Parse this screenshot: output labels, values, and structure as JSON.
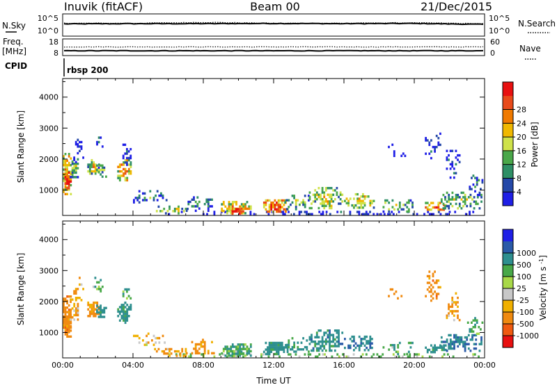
{
  "header": {
    "station": "Inuvik (fitACF)",
    "beam": "Beam 00",
    "date": "21/Dec/2015"
  },
  "colors": {
    "line": "#000000",
    "background": "#ffffff",
    "power_scale": [
      "#1f1fe6",
      "#2448a8",
      "#2e8f66",
      "#4aa84a",
      "#cfe24a",
      "#f0b800",
      "#f07a00",
      "#e84a1a",
      "#e81010"
    ],
    "velocity_scale": [
      "#e81010",
      "#f05a10",
      "#f08a10",
      "#f0b000",
      "#c8c8c8",
      "#a8d848",
      "#48a848",
      "#2e8f8f",
      "#2a5aa8",
      "#1f1fe6"
    ]
  },
  "chart_data": [
    {
      "type": "line",
      "panel": "nsky-nsearch",
      "left_label": "N.Sky",
      "right_label": "N.Search",
      "left_ticks": [
        "10^5",
        "10^0"
      ],
      "right_ticks": [
        "10^5",
        "10^0"
      ],
      "x": [
        "00:00",
        "04:00",
        "08:00",
        "12:00",
        "16:00",
        "20:00",
        "00:00"
      ],
      "series": [
        {
          "values": [
            0.55,
            0.56,
            0.56,
            0.57,
            0.56,
            0.57,
            0.53
          ],
          "style": "solid"
        },
        {
          "values": [
            0.58,
            0.58,
            0.62,
            0.58,
            0.58,
            0.6,
            0.56
          ],
          "style": "dotted"
        }
      ],
      "ylim": [
        0,
        1
      ]
    },
    {
      "type": "line",
      "panel": "freq-nave",
      "left_label_lines": [
        "Freq.",
        "[MHz]"
      ],
      "right_label": "Nave",
      "left_ticks": [
        "18",
        "8"
      ],
      "right_ticks": [
        "60",
        "0"
      ],
      "x": [
        "00:00",
        "04:00",
        "08:00",
        "12:00",
        "16:00",
        "20:00",
        "00:00"
      ],
      "series": [
        {
          "values": [
            10.9,
            10.9,
            10.9,
            10.9,
            10.9,
            10.9,
            10.9
          ],
          "style": "solid"
        },
        {
          "values": [
            13.2,
            13.2,
            13.2,
            13.2,
            13.2,
            13.2,
            13.2
          ],
          "style": "dotted"
        }
      ],
      "ylim": [
        8,
        18
      ]
    },
    {
      "type": "line",
      "panel": "cpid",
      "left_label": "CPID",
      "annotation": "rbsp 200"
    },
    {
      "type": "heatmap",
      "panel": "power",
      "ylabel": "Slant Range [km]",
      "yticks": [
        "1000",
        "2000",
        "3000",
        "4000"
      ],
      "ylim": [
        180,
        4600
      ],
      "xlim_hours": [
        0,
        24
      ],
      "colorbar_label": "Power [dB]",
      "colorbar_ticks": [
        "4",
        "8",
        "12",
        "16",
        "20",
        "24",
        "28"
      ],
      "clusters": [
        {
          "t": [
            0.0,
            0.5
          ],
          "r": [
            800,
            2200
          ],
          "v": 24,
          "d": 0.95
        },
        {
          "t": [
            0.1,
            0.5
          ],
          "r": [
            1000,
            1600
          ],
          "v": 30,
          "d": 0.95
        },
        {
          "t": [
            0.4,
            0.9
          ],
          "r": [
            1400,
            2100
          ],
          "v": 16,
          "d": 0.65
        },
        {
          "t": [
            0.6,
            1.2
          ],
          "r": [
            1900,
            2800
          ],
          "v": 6,
          "d": 0.3
        },
        {
          "t": [
            1.4,
            2.1
          ],
          "r": [
            1500,
            2000
          ],
          "v": 20,
          "d": 0.8
        },
        {
          "t": [
            1.9,
            2.5
          ],
          "r": [
            1400,
            1900
          ],
          "v": 14,
          "d": 0.6
        },
        {
          "t": [
            1.7,
            2.3
          ],
          "r": [
            2300,
            2800
          ],
          "v": 6,
          "d": 0.3
        },
        {
          "t": [
            3.1,
            3.9
          ],
          "r": [
            1300,
            2000
          ],
          "v": 24,
          "d": 0.7
        },
        {
          "t": [
            3.4,
            3.95
          ],
          "r": [
            1800,
            2500
          ],
          "v": 5,
          "d": 0.45
        },
        {
          "t": [
            4.0,
            6.0
          ],
          "r": [
            550,
            1000
          ],
          "v": 9,
          "d": 0.25
        },
        {
          "t": [
            6.0,
            23.9
          ],
          "r": [
            180,
            330
          ],
          "v": 5,
          "d": 0.28
        },
        {
          "t": [
            5.2,
            7.2
          ],
          "r": [
            200,
            500
          ],
          "v": 18,
          "d": 0.55
        },
        {
          "t": [
            7.0,
            8.6
          ],
          "r": [
            300,
            800
          ],
          "v": 12,
          "d": 0.35
        },
        {
          "t": [
            9.0,
            10.8
          ],
          "r": [
            220,
            650
          ],
          "v": 22,
          "d": 0.8
        },
        {
          "t": [
            9.5,
            10.3
          ],
          "r": [
            240,
            420
          ],
          "v": 30,
          "d": 0.9
        },
        {
          "t": [
            11.4,
            12.8
          ],
          "r": [
            250,
            700
          ],
          "v": 28,
          "d": 0.95
        },
        {
          "t": [
            12.5,
            14.0
          ],
          "r": [
            350,
            850
          ],
          "v": 14,
          "d": 0.45
        },
        {
          "t": [
            14.0,
            16.0
          ],
          "r": [
            400,
            1100
          ],
          "v": 18,
          "d": 0.6
        },
        {
          "t": [
            16.0,
            17.8
          ],
          "r": [
            400,
            900
          ],
          "v": 20,
          "d": 0.55
        },
        {
          "t": [
            18.2,
            20.0
          ],
          "r": [
            300,
            700
          ],
          "v": 16,
          "d": 0.4
        },
        {
          "t": [
            20.6,
            21.8
          ],
          "r": [
            300,
            620
          ],
          "v": 28,
          "d": 0.75
        },
        {
          "t": [
            21.5,
            23.9
          ],
          "r": [
            350,
            950
          ],
          "v": 16,
          "d": 0.5
        },
        {
          "t": [
            23.0,
            23.9
          ],
          "r": [
            900,
            1500
          ],
          "v": 10,
          "d": 0.35
        },
        {
          "t": [
            18.5,
            19.5
          ],
          "r": [
            2100,
            2500
          ],
          "v": 5,
          "d": 0.22
        },
        {
          "t": [
            20.6,
            21.5
          ],
          "r": [
            2000,
            3000
          ],
          "v": 6,
          "d": 0.3
        },
        {
          "t": [
            21.8,
            22.6
          ],
          "r": [
            1400,
            2300
          ],
          "v": 6,
          "d": 0.35
        }
      ]
    },
    {
      "type": "heatmap",
      "panel": "velocity",
      "ylabel": "Slant Range [km]",
      "yticks": [
        "1000",
        "2000",
        "3000",
        "4000"
      ],
      "ylim": [
        180,
        4600
      ],
      "xlabel": "Time UT",
      "xticks": [
        "00:00",
        "04:00",
        "08:00",
        "12:00",
        "16:00",
        "20:00",
        "00:00"
      ],
      "xlim_hours": [
        0,
        24
      ],
      "colorbar_label": "Velocity [m s^-1]",
      "colorbar_ticks": [
        "-1000",
        "-500",
        "-100",
        "-25",
        "25",
        "100",
        "500",
        "1000"
      ],
      "clusters": [
        {
          "t": [
            0.0,
            0.5
          ],
          "r": [
            800,
            2200
          ],
          "v": -300,
          "d": 0.95
        },
        {
          "t": [
            0.1,
            0.5
          ],
          "r": [
            1000,
            1600
          ],
          "v": -150,
          "d": 0.9
        },
        {
          "t": [
            0.4,
            0.9
          ],
          "r": [
            1400,
            2100
          ],
          "v": -100,
          "d": 0.65
        },
        {
          "t": [
            0.6,
            1.2
          ],
          "r": [
            1900,
            2800
          ],
          "v": -80,
          "d": 0.3
        },
        {
          "t": [
            1.4,
            2.1
          ],
          "r": [
            1500,
            2000
          ],
          "v": -200,
          "d": 0.8
        },
        {
          "t": [
            1.9,
            2.5
          ],
          "r": [
            1400,
            1900
          ],
          "v": 300,
          "d": 0.6
        },
        {
          "t": [
            1.7,
            2.3
          ],
          "r": [
            2300,
            2800
          ],
          "v": 60,
          "d": 0.3
        },
        {
          "t": [
            3.1,
            3.9
          ],
          "r": [
            1300,
            2000
          ],
          "v": 200,
          "d": 0.7
        },
        {
          "t": [
            3.4,
            3.95
          ],
          "r": [
            1800,
            2500
          ],
          "v": 80,
          "d": 0.45
        },
        {
          "t": [
            4.0,
            6.0
          ],
          "r": [
            550,
            1000
          ],
          "v": -60,
          "d": 0.25
        },
        {
          "t": [
            6.0,
            23.9
          ],
          "r": [
            180,
            330
          ],
          "v": 30,
          "d": 0.28
        },
        {
          "t": [
            5.2,
            7.2
          ],
          "r": [
            200,
            500
          ],
          "v": -120,
          "d": 0.55
        },
        {
          "t": [
            7.0,
            8.6
          ],
          "r": [
            300,
            800
          ],
          "v": -200,
          "d": 0.35
        },
        {
          "t": [
            9.0,
            10.8
          ],
          "r": [
            220,
            650
          ],
          "v": 100,
          "d": 0.8
        },
        {
          "t": [
            9.5,
            10.3
          ],
          "r": [
            240,
            420
          ],
          "v": 60,
          "d": 0.9
        },
        {
          "t": [
            11.4,
            12.8
          ],
          "r": [
            250,
            700
          ],
          "v": 250,
          "d": 0.95
        },
        {
          "t": [
            12.5,
            14.0
          ],
          "r": [
            350,
            850
          ],
          "v": 150,
          "d": 0.45
        },
        {
          "t": [
            14.0,
            16.0
          ],
          "r": [
            400,
            1100
          ],
          "v": 300,
          "d": 0.6
        },
        {
          "t": [
            16.0,
            17.8
          ],
          "r": [
            400,
            900
          ],
          "v": 400,
          "d": 0.55
        },
        {
          "t": [
            18.2,
            20.0
          ],
          "r": [
            300,
            700
          ],
          "v": 80,
          "d": 0.4
        },
        {
          "t": [
            20.6,
            21.8
          ],
          "r": [
            300,
            620
          ],
          "v": 200,
          "d": 0.75
        },
        {
          "t": [
            21.5,
            23.9
          ],
          "r": [
            350,
            950
          ],
          "v": 500,
          "d": 0.5
        },
        {
          "t": [
            23.0,
            23.9
          ],
          "r": [
            900,
            1500
          ],
          "v": 100,
          "d": 0.35
        },
        {
          "t": [
            18.5,
            19.5
          ],
          "r": [
            2100,
            2500
          ],
          "v": -200,
          "d": 0.22
        },
        {
          "t": [
            20.6,
            21.5
          ],
          "r": [
            2000,
            3000
          ],
          "v": -300,
          "d": 0.3
        },
        {
          "t": [
            21.8,
            22.6
          ],
          "r": [
            1400,
            2300
          ],
          "v": -100,
          "d": 0.35
        }
      ]
    }
  ]
}
